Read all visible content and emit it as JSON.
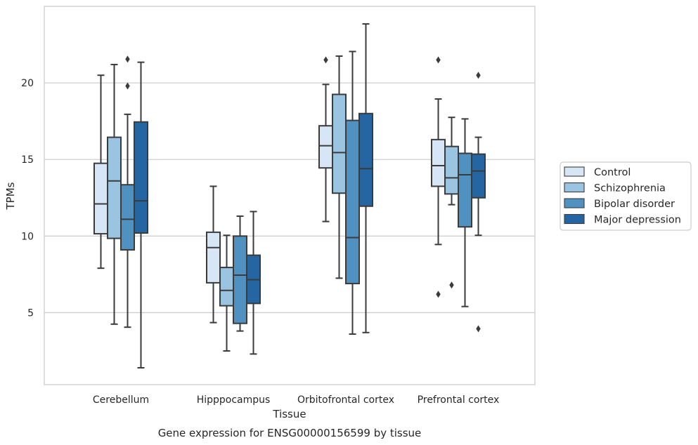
{
  "chart_data": {
    "type": "box",
    "title": "Gene expression for ENSG00000156599 by tissue",
    "xlabel": "Tissue",
    "ylabel": "TPMs",
    "ylim": [
      0.3,
      25.0
    ],
    "yticks": [
      5,
      10,
      15,
      20
    ],
    "grid": "horizontal",
    "legend_position": "right",
    "categories": [
      "Cerebellum",
      "Hipppocampus",
      "Orbitofrontal cortex",
      "Prefrontal cortex"
    ],
    "series": [
      {
        "name": "Control",
        "color": "#d7e6f4",
        "boxes": [
          {
            "whislo": 7.9,
            "q1": 10.15,
            "med": 12.1,
            "q3": 14.75,
            "whishi": 20.5,
            "fliers": []
          },
          {
            "whislo": 4.35,
            "q1": 6.95,
            "med": 9.25,
            "q3": 10.25,
            "whishi": 13.25,
            "fliers": []
          },
          {
            "whislo": 10.95,
            "q1": 14.45,
            "med": 15.9,
            "q3": 17.2,
            "whishi": 19.9,
            "fliers": [
              21.5
            ]
          },
          {
            "whislo": 9.45,
            "q1": 13.25,
            "med": 14.6,
            "q3": 16.3,
            "whishi": 18.95,
            "fliers": [
              21.5,
              6.2
            ]
          }
        ]
      },
      {
        "name": "Schizophrenia",
        "color": "#9ac4df",
        "boxes": [
          {
            "whislo": 4.25,
            "q1": 9.85,
            "med": 13.6,
            "q3": 16.45,
            "whishi": 21.2,
            "fliers": []
          },
          {
            "whislo": 2.5,
            "q1": 5.45,
            "med": 6.45,
            "q3": 7.95,
            "whishi": 10.05,
            "fliers": []
          },
          {
            "whislo": 7.25,
            "q1": 12.8,
            "med": 15.45,
            "q3": 19.25,
            "whishi": 21.75,
            "fliers": []
          },
          {
            "whislo": 12.05,
            "q1": 12.75,
            "med": 13.8,
            "q3": 15.85,
            "whishi": 17.75,
            "fliers": [
              6.8
            ]
          }
        ]
      },
      {
        "name": "Bipolar disorder",
        "color": "#4f92c2",
        "boxes": [
          {
            "whislo": 4.05,
            "q1": 9.1,
            "med": 11.1,
            "q3": 13.35,
            "whishi": 17.95,
            "fliers": [
              21.55,
              19.8
            ]
          },
          {
            "whislo": 3.8,
            "q1": 4.3,
            "med": 7.45,
            "q3": 10.0,
            "whishi": 11.3,
            "fliers": []
          },
          {
            "whislo": 3.6,
            "q1": 6.9,
            "med": 9.9,
            "q3": 17.55,
            "whishi": 22.05,
            "fliers": []
          },
          {
            "whislo": 5.4,
            "q1": 10.6,
            "med": 14.0,
            "q3": 15.4,
            "whishi": 17.65,
            "fliers": []
          }
        ]
      },
      {
        "name": "Major depression",
        "color": "#2566a2",
        "boxes": [
          {
            "whislo": 1.4,
            "q1": 10.2,
            "med": 12.3,
            "q3": 17.45,
            "whishi": 21.35,
            "fliers": []
          },
          {
            "whislo": 2.3,
            "q1": 5.6,
            "med": 7.15,
            "q3": 8.75,
            "whishi": 11.6,
            "fliers": []
          },
          {
            "whislo": 3.7,
            "q1": 11.95,
            "med": 14.4,
            "q3": 18.0,
            "whishi": 23.85,
            "fliers": []
          },
          {
            "whislo": 10.05,
            "q1": 12.5,
            "med": 14.25,
            "q3": 15.35,
            "whishi": 16.45,
            "fliers": [
              20.5,
              3.95
            ]
          }
        ]
      }
    ]
  }
}
